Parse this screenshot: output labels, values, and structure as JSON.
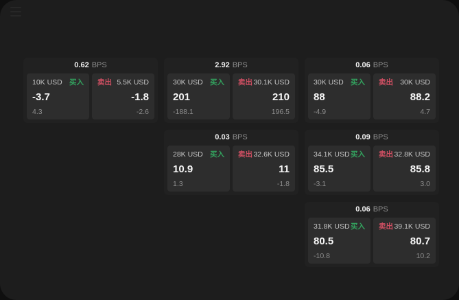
{
  "app": {
    "menu_icon": "menu-icon"
  },
  "labels": {
    "bps_unit": "BPS",
    "buy": "买入",
    "sell": "卖出"
  },
  "colors": {
    "buy_green": "#33a45f",
    "sell_red": "#ce4f62",
    "panel_bg": "#1d1d1d",
    "card_bg": "#212121",
    "tile_bg": "#2d2d2d"
  },
  "cards": [
    {
      "bps": "0.62",
      "buy": {
        "amount": "10K USD",
        "value": "-3.7",
        "sub": "4.3"
      },
      "sell": {
        "amount": "5.5K USD",
        "value": "-1.8",
        "sub": "-2.6"
      }
    },
    {
      "bps": "2.92",
      "buy": {
        "amount": "30K USD",
        "value": "201",
        "sub": "-188.1"
      },
      "sell": {
        "amount": "30.1K USD",
        "value": "210",
        "sub": "196.5"
      }
    },
    {
      "bps": "0.06",
      "buy": {
        "amount": "30K USD",
        "value": "88",
        "sub": "-4.9"
      },
      "sell": {
        "amount": "30K USD",
        "value": "88.2",
        "sub": "4.7"
      }
    },
    {
      "bps": "0.03",
      "buy": {
        "amount": "28K USD",
        "value": "10.9",
        "sub": "1.3"
      },
      "sell": {
        "amount": "32.6K USD",
        "value": "11",
        "sub": "-1.8"
      }
    },
    {
      "bps": "0.09",
      "buy": {
        "amount": "34.1K USD",
        "value": "85.5",
        "sub": "-3.1"
      },
      "sell": {
        "amount": "32.8K USD",
        "value": "85.8",
        "sub": "3.0"
      }
    },
    {
      "bps": "0.06",
      "buy": {
        "amount": "31.8K USD",
        "value": "80.5",
        "sub": "-10.8"
      },
      "sell": {
        "amount": "39.1K USD",
        "value": "80.7",
        "sub": "10.2"
      }
    }
  ]
}
